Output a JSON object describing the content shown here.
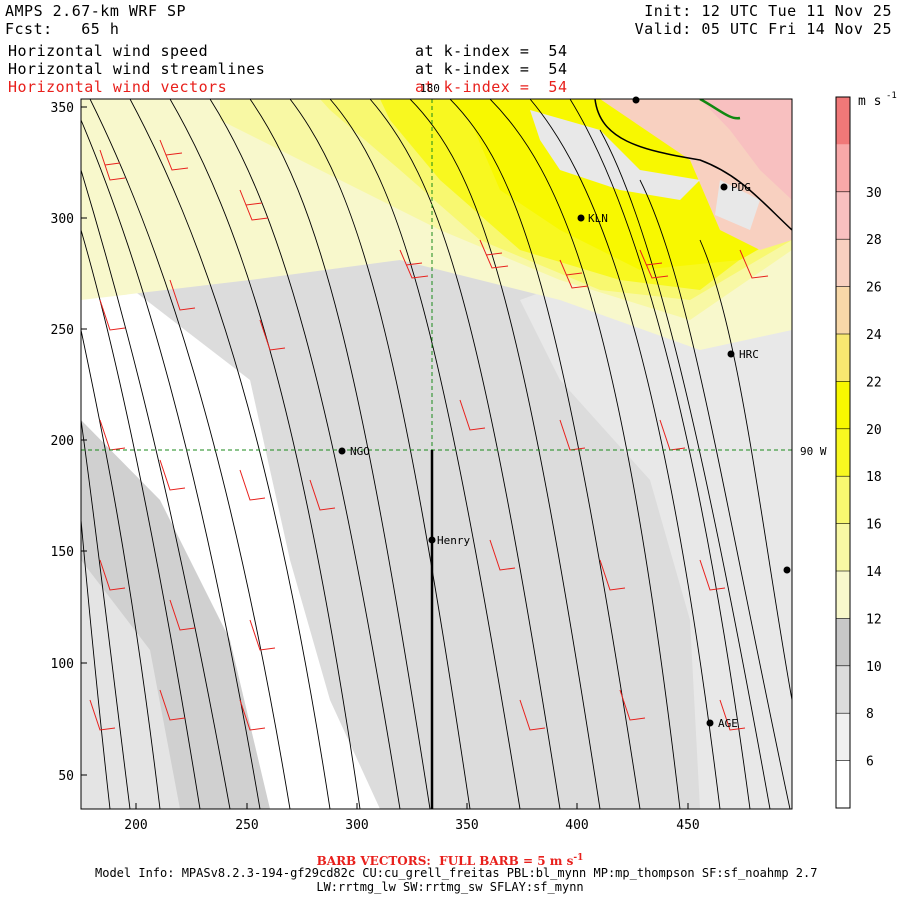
{
  "header": {
    "model_title": "AMPS 2.67-km WRF SP",
    "forecast_hour": "Fcst:   65 h",
    "init_time": "Init: 12 UTC Tue 11 Nov 25",
    "valid_time": "Valid: 05 UTC Fri 14 Nov 25",
    "fields": [
      {
        "name": "Horizontal wind speed",
        "level": "at k-index =  54",
        "color": "#000000"
      },
      {
        "name": "Horizontal wind streamlines",
        "level": "at k-index =  54",
        "color": "#000000"
      },
      {
        "name": "Horizontal wind vectors",
        "level": "at k-index =  54",
        "color": "#e8201c"
      }
    ]
  },
  "map": {
    "x_ticks": [
      "200",
      "250",
      "300",
      "350",
      "400",
      "450"
    ],
    "y_ticks": [
      "50",
      "100",
      "150",
      "200",
      "250",
      "300",
      "350"
    ],
    "meridian_label": "180",
    "parallel_label": "90 W",
    "stations": [
      {
        "label": "NGO"
      },
      {
        "label": "Henry"
      },
      {
        "label": "KLN"
      },
      {
        "label": "PDG"
      },
      {
        "label": "HRC"
      },
      {
        "label": "AGE"
      }
    ]
  },
  "colorbar": {
    "unit_label": "m s",
    "unit_exponent": "-1",
    "tick_labels": [
      "6",
      "8",
      "10",
      "12",
      "14",
      "16",
      "18",
      "20",
      "22",
      "24",
      "26",
      "28",
      "30"
    ],
    "colors": [
      "#ffffff",
      "#f0f0f0",
      "#dcdcdc",
      "#c8c8c8",
      "#f8f8cc",
      "#f8f8a4",
      "#f8f870",
      "#f8f820",
      "#f8f800",
      "#f8e870",
      "#f8d8a8",
      "#f8d0c0",
      "#f8c0c0",
      "#f8a8a8",
      "#f07878"
    ]
  },
  "footer": {
    "barb_caption": "BARB VECTORS:  FULL BARB = 5 m s",
    "barb_exponent": "-1",
    "model_info": "Model Info: MPASv8.2.3-194-gf29cd82c CU:cu_grell_freitas PBL:bl_mynn MP:mp_thompson SF:sf_noahmp 2.7",
    "model_info_2": "LW:rrtmg_lw SW:rrtmg_sw SFLAY:sf_mynn"
  }
}
